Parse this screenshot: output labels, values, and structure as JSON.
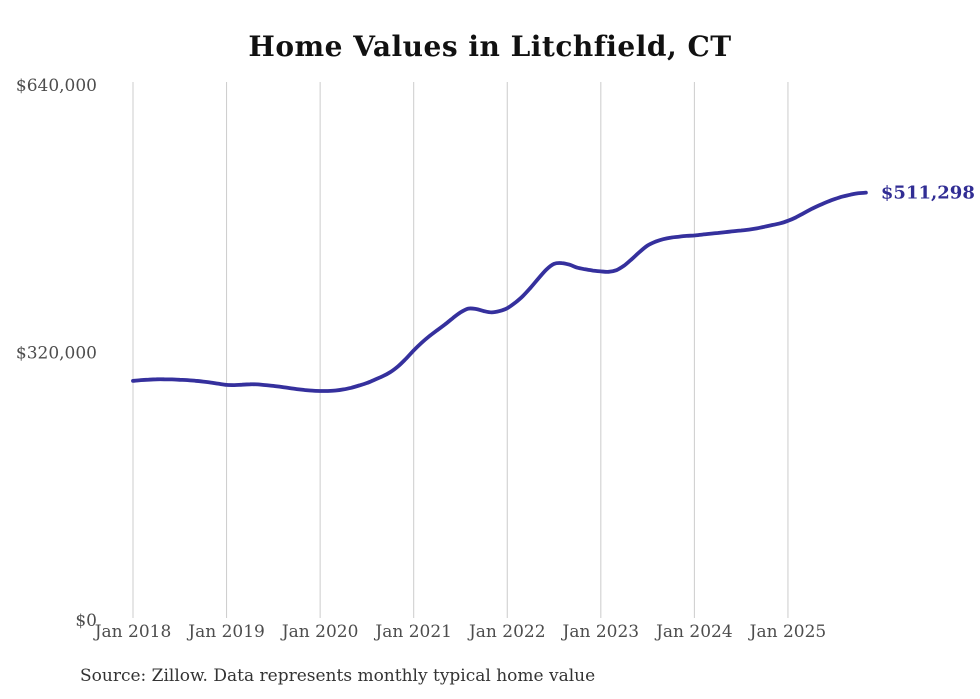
{
  "page": {
    "title": "Home Values in Litchfield, CT",
    "source_note": "Source: Zillow. Data represents monthly typical home value"
  },
  "chart_data": {
    "type": "line",
    "title": "Home Values in Litchfield, CT",
    "xlabel": "",
    "ylabel": "",
    "ylim": [
      0,
      640000
    ],
    "grid": "vertical-only",
    "legend": "none",
    "end_label": "$511,298",
    "colors": {
      "line": "#35309d",
      "end_label": "#312d94",
      "grid": "#cccccc",
      "axis_labels": "#4d4d4d",
      "title": "#111111",
      "source": "#333333"
    },
    "y_ticks": [
      {
        "label": "$640,000",
        "value": 640000
      },
      {
        "label": "$320,000",
        "value": 320000
      },
      {
        "label": "$0",
        "value": 0
      }
    ],
    "x_ticks": [
      {
        "label": "Jan 2018",
        "month_index": 0
      },
      {
        "label": "Jan 2019",
        "month_index": 12
      },
      {
        "label": "Jan 2020",
        "month_index": 24
      },
      {
        "label": "Jan 2021",
        "month_index": 36
      },
      {
        "label": "Jan 2022",
        "month_index": 48
      },
      {
        "label": "Jan 2023",
        "month_index": 60
      },
      {
        "label": "Jan 2024",
        "month_index": 72
      },
      {
        "label": "Jan 2025",
        "month_index": 84
      }
    ],
    "series": [
      {
        "name": "Monthly typical home value",
        "color": "#35309d",
        "months": [
          "2018-01",
          "2018-02",
          "2018-03",
          "2018-04",
          "2018-05",
          "2018-06",
          "2018-07",
          "2018-08",
          "2018-09",
          "2018-10",
          "2018-11",
          "2018-12",
          "2019-01",
          "2019-02",
          "2019-03",
          "2019-04",
          "2019-05",
          "2019-06",
          "2019-07",
          "2019-08",
          "2019-09",
          "2019-10",
          "2019-11",
          "2019-12",
          "2020-01",
          "2020-02",
          "2020-03",
          "2020-04",
          "2020-05",
          "2020-06",
          "2020-07",
          "2020-08",
          "2020-09",
          "2020-10",
          "2020-11",
          "2020-12",
          "2021-01",
          "2021-02",
          "2021-03",
          "2021-04",
          "2021-05",
          "2021-06",
          "2021-07",
          "2021-08",
          "2021-09",
          "2021-10",
          "2021-11",
          "2021-12",
          "2022-01",
          "2022-02",
          "2022-03",
          "2022-04",
          "2022-05",
          "2022-06",
          "2022-07",
          "2022-08",
          "2022-09",
          "2022-10",
          "2022-11",
          "2022-12",
          "2023-01",
          "2023-02",
          "2023-03",
          "2023-04",
          "2023-05",
          "2023-06",
          "2023-07",
          "2023-08",
          "2023-09",
          "2023-10",
          "2023-11",
          "2023-12",
          "2024-01",
          "2024-02",
          "2024-03",
          "2024-04",
          "2024-05",
          "2024-06",
          "2024-07",
          "2024-08",
          "2024-09",
          "2024-10",
          "2024-11",
          "2024-12",
          "2025-01",
          "2025-02",
          "2025-03",
          "2025-04",
          "2025-05",
          "2025-06",
          "2025-07",
          "2025-08",
          "2025-09",
          "2025-10",
          "2025-11"
        ],
        "values": [
          286000,
          287000,
          287500,
          288000,
          288000,
          287800,
          287400,
          287000,
          286200,
          285200,
          284000,
          282500,
          281200,
          281000,
          281500,
          282000,
          281800,
          281000,
          280000,
          278800,
          277500,
          276200,
          275200,
          274400,
          274000,
          274000,
          274500,
          275800,
          277800,
          280500,
          283500,
          287500,
          291500,
          296500,
          303500,
          312500,
          322500,
          331500,
          339500,
          346500,
          353500,
          361000,
          368000,
          372500,
          372000,
          369500,
          368000,
          369500,
          373000,
          379500,
          387500,
          397500,
          408500,
          419000,
          426000,
          427000,
          425000,
          421500,
          419500,
          418000,
          417000,
          416500,
          418500,
          424000,
          432000,
          440500,
          448000,
          452500,
          455500,
          457500,
          458500,
          459500,
          460000,
          461000,
          462000,
          463000,
          464000,
          465000,
          466000,
          467000,
          468500,
          470500,
          472500,
          474500,
          477500,
          481500,
          486500,
          491500,
          496000,
          500000,
          503500,
          506500,
          508800,
          510400,
          511298
        ]
      }
    ]
  }
}
